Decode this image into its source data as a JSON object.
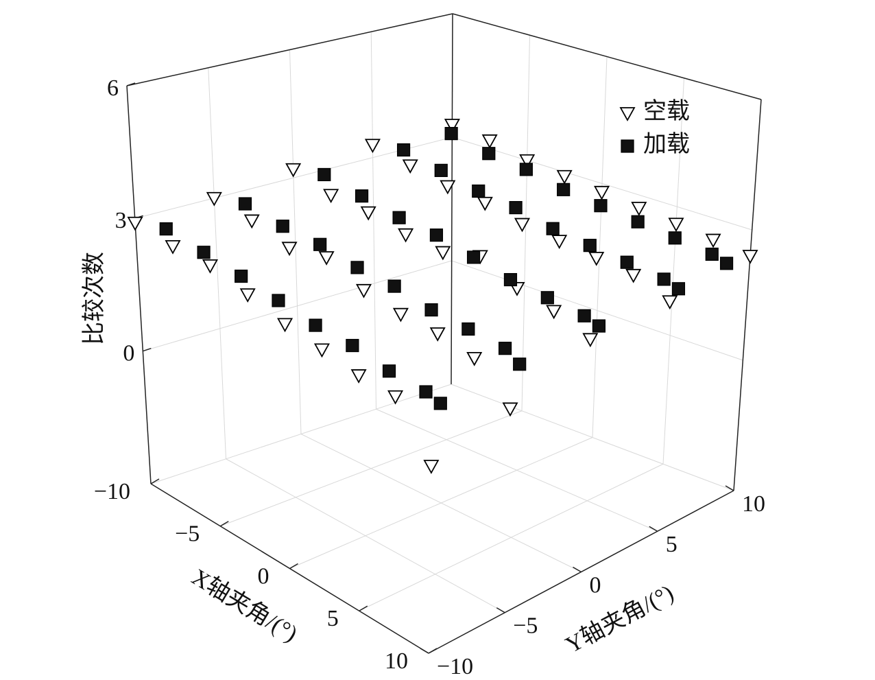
{
  "chart_data": {
    "type": "scatter3d",
    "xlabel": "X轴夹角/(°)",
    "ylabel": "Y轴夹角/(°)",
    "zlabel": "比较次数",
    "xlim": [
      -10,
      10
    ],
    "ylim": [
      -10,
      10
    ],
    "zlim": [
      -3,
      6
    ],
    "xticks": [
      {
        "value": -10,
        "label": "−10"
      },
      {
        "value": -5,
        "label": "−5"
      },
      0,
      5,
      10
    ],
    "yticks": [
      {
        "value": -10,
        "label": "−10"
      },
      {
        "value": -5,
        "label": "−5"
      },
      0,
      5,
      10
    ],
    "zticks": [
      0,
      3,
      6
    ],
    "grid": true,
    "legend": "upper right",
    "series": [
      {
        "name": "空载",
        "marker": "triangle-down",
        "color": "#ffffff",
        "x": [
          -10,
          -7.5,
          -5,
          -2.5,
          0,
          2.5,
          5,
          7.5,
          10,
          -10,
          -7.5,
          -5,
          -2.5,
          0,
          2.5,
          5,
          7.5,
          10,
          -10,
          -7.5,
          -5,
          -2.5,
          0,
          2.5,
          5,
          7.5,
          10,
          -10,
          -7.5,
          -5,
          -2.5,
          0,
          2.5,
          5,
          7.5,
          10,
          -10,
          -7.5,
          -5,
          -2.5,
          0,
          2.5,
          5,
          7.5,
          10
        ],
        "y": [
          -10,
          -10,
          -10,
          -10,
          -10,
          -10,
          -10,
          -10,
          -10,
          -5,
          -5,
          -5,
          -5,
          -5,
          -5,
          -5,
          -5,
          -5,
          0,
          0,
          0,
          0,
          0,
          0,
          0,
          0,
          0,
          5,
          5,
          5,
          5,
          5,
          5,
          5,
          5,
          5,
          10,
          10,
          10,
          10,
          10,
          10,
          10,
          10,
          10
        ],
        "z": [
          2.9,
          2.7,
          2.6,
          2.3,
          2.0,
          1.8,
          1.6,
          1.5,
          0.5,
          3.0,
          2.8,
          2.5,
          2.6,
          2.2,
          2.0,
          1.9,
          1.7,
          1.0,
          3.2,
          2.9,
          2.8,
          2.6,
          2.5,
          2.7,
          2.3,
          2.1,
          1.8,
          3.3,
          3.1,
          2.9,
          2.8,
          2.6,
          2.5,
          2.4,
          2.3,
          2.0,
          3.3,
          3.2,
          3.0,
          2.9,
          2.8,
          2.7,
          2.6,
          2.5,
          2.4
        ]
      },
      {
        "name": "加载",
        "marker": "square",
        "color": "#111111",
        "x": [
          -9,
          -6.5,
          -4,
          -1.5,
          1,
          3.5,
          6,
          8.5,
          9.5,
          -9,
          -6.5,
          -4,
          -1.5,
          1,
          3.5,
          6,
          8.5,
          9.5,
          -9,
          -6.5,
          -4,
          -1.5,
          1,
          3.5,
          6,
          8.5,
          9.5,
          -9,
          -6.5,
          -4,
          -1.5,
          1,
          3.5,
          6,
          8.5,
          9.5,
          -9,
          -6.5,
          -4,
          -1.5,
          1,
          3.5,
          6,
          8.5,
          9.5
        ],
        "y": [
          -9,
          -9,
          -9,
          -9,
          -9,
          -9,
          -9,
          -9,
          -9,
          -4,
          -4,
          -4,
          -4,
          -4,
          -4,
          -4,
          -4,
          -4,
          1,
          1,
          1,
          1,
          1,
          1,
          1,
          1,
          1,
          6,
          6,
          6,
          6,
          6,
          6,
          6,
          6,
          6,
          9,
          9,
          9,
          9,
          9,
          9,
          9,
          9,
          9
        ],
        "z": [
          2.8,
          2.6,
          2.4,
          2.2,
          2.0,
          1.9,
          1.7,
          1.6,
          1.5,
          2.9,
          2.7,
          2.6,
          2.4,
          2.3,
          2.1,
          2.0,
          1.9,
          1.7,
          3.1,
          2.9,
          2.7,
          2.6,
          2.4,
          2.2,
          2.1,
          2.0,
          1.9,
          3.2,
          3.0,
          2.8,
          2.7,
          2.5,
          2.4,
          2.3,
          2.2,
          2.1,
          3.3,
          3.1,
          3.0,
          2.8,
          2.7,
          2.6,
          2.5,
          2.4,
          2.3
        ]
      }
    ]
  }
}
